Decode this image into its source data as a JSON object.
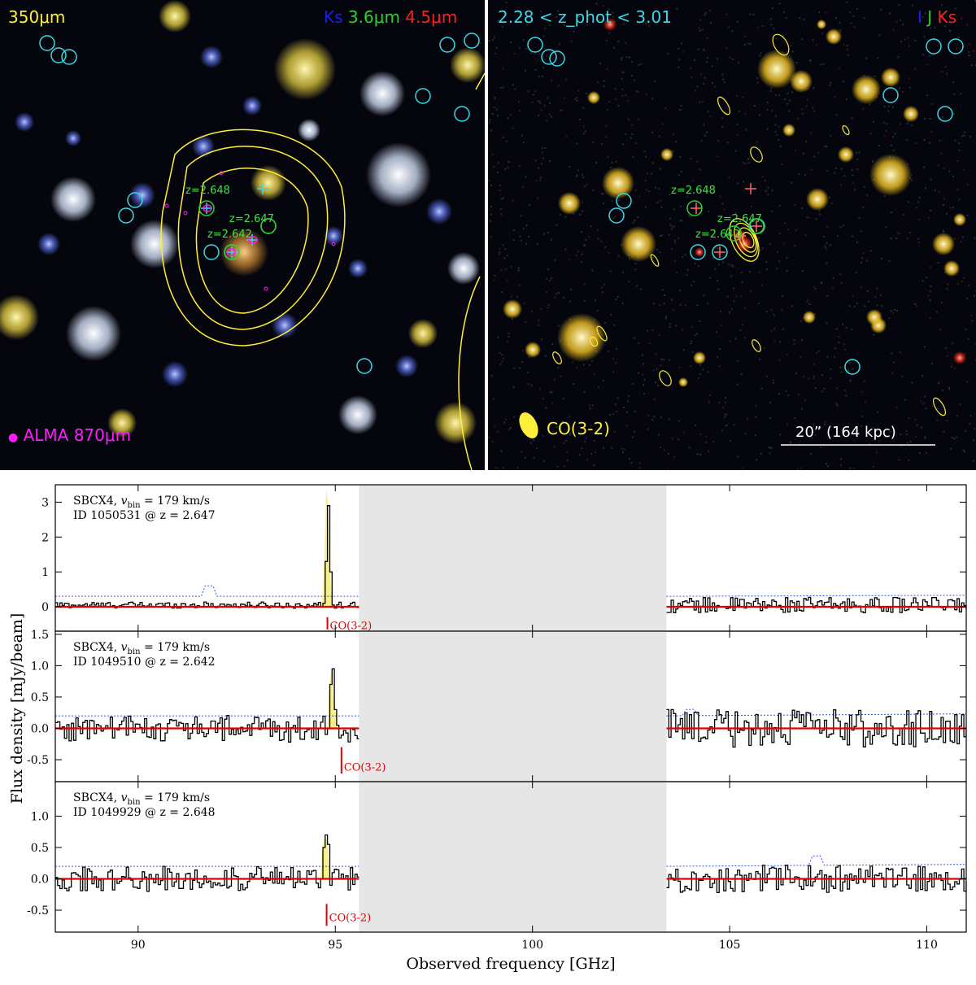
{
  "left_panel": {
    "band_label": "350",
    "micron_suffix": "μm",
    "rgb_blue": "Ks",
    "rgb_green_value": "3.6",
    "rgb_red_value": "4.5",
    "alma_label": "ALMA 870",
    "redshift_labels": [
      "z=2.648",
      "z=2.647",
      "z=2.642"
    ],
    "colors": {
      "band": "#ffef3a",
      "blue": "#1a1aff",
      "green": "#2bd22b",
      "red": "#ff2020",
      "alma": "#ff1aff",
      "contour": "#ffef3a",
      "circle": "#3cd8e6"
    }
  },
  "right_panel": {
    "photz_label": "2.28 < z_phot < 3.01",
    "rgb_i": "I",
    "rgb_j": "J",
    "rgb_ks": "Ks",
    "co_label": "CO(3-2)",
    "scale_label": "20” (164 kpc)",
    "redshift_labels": [
      "z=2.648",
      "z=2.647",
      "z=2.642"
    ],
    "colors": {
      "photz": "#3cd8e6",
      "i": "#1a1aff",
      "j": "#2bd22b",
      "ks": "#ff2020",
      "co": "#ffef3a",
      "scale": "#ffffff"
    }
  },
  "chart_data": {
    "type": "line",
    "xlabel": "Observed frequency [GHz]",
    "ylabel": "Flux density [mJy/beam]",
    "xlim": [
      87.9,
      111.0
    ],
    "xticks": [
      90,
      95,
      100,
      105,
      110
    ],
    "masked_range": [
      95.6,
      103.4
    ],
    "line_label": "CO(3-2)",
    "panels": [
      {
        "instrument": "SBCX4",
        "vbin_label": "v",
        "vbin_subscript": "bin",
        "vbin_value": "= 179 km/s",
        "id_label": "ID 1050531 @ z = 2.647",
        "ylim": [
          -0.7,
          3.5
        ],
        "yticks": [
          0,
          1,
          2,
          3
        ],
        "line_freq": 94.8,
        "line_marker_range": [
          -0.3,
          -0.65
        ],
        "line_label_y": -0.5,
        "line_fill": [
          {
            "freq": 94.62,
            "flux": 0.0
          },
          {
            "freq": 94.67,
            "flux": 0.1
          },
          {
            "freq": 94.72,
            "flux": 1.3
          },
          {
            "freq": 94.77,
            "flux": 3.4
          },
          {
            "freq": 94.82,
            "flux": 2.9
          },
          {
            "freq": 94.87,
            "flux": 1.0
          },
          {
            "freq": 94.92,
            "flux": 0.05
          }
        ],
        "low_band": {
          "start": 87.9,
          "end": 95.6,
          "noise_amp": 0.09
        },
        "high_band": {
          "start": 103.4,
          "end": 111.0,
          "noise_amp": 0.22
        },
        "noise_level": 0.3,
        "noise_bump": {
          "freq": 91.8,
          "height": 0.3
        }
      },
      {
        "instrument": "SBCX4",
        "vbin_label": "v",
        "vbin_subscript": "bin",
        "vbin_value": "= 179 km/s",
        "id_label": "ID 1049510 @ z = 2.642",
        "ylim": [
          -0.85,
          1.55
        ],
        "yticks": [
          -0.5,
          0.0,
          0.5,
          1.0,
          1.5
        ],
        "line_freq": 94.95,
        "line_marker_range": [
          -0.3,
          -0.72
        ],
        "line_label_y": -0.6,
        "line_fill": [
          {
            "freq": 94.8,
            "flux": 0.0
          },
          {
            "freq": 94.85,
            "flux": 0.7
          },
          {
            "freq": 94.9,
            "flux": 0.95
          },
          {
            "freq": 94.95,
            "flux": 0.5
          },
          {
            "freq": 95.0,
            "flux": 0.3
          },
          {
            "freq": 95.05,
            "flux": 0.05
          }
        ],
        "low_band": {
          "start": 87.9,
          "end": 95.6,
          "noise_amp": 0.22
        },
        "high_band": {
          "start": 103.4,
          "end": 111.0,
          "noise_amp": 0.3
        },
        "noise_level": 0.2,
        "noise_bump": {
          "freq": 104.0,
          "height": 0.1
        }
      },
      {
        "instrument": "SBCX4",
        "vbin_label": "v",
        "vbin_subscript": "bin",
        "vbin_value": "= 179 km/s",
        "id_label": "ID 1049929 @ z = 2.648",
        "ylim": [
          -0.85,
          1.55
        ],
        "yticks": [
          -0.5,
          0.0,
          0.5,
          1.0
        ],
        "line_freq": 94.78,
        "line_marker_range": [
          -0.4,
          -0.75
        ],
        "line_label_y": -0.6,
        "line_fill": [
          {
            "freq": 94.62,
            "flux": 0.0
          },
          {
            "freq": 94.68,
            "flux": 0.5
          },
          {
            "freq": 94.74,
            "flux": 0.7
          },
          {
            "freq": 94.8,
            "flux": 0.55
          },
          {
            "freq": 94.86,
            "flux": 0.05
          }
        ],
        "low_band": {
          "start": 87.9,
          "end": 95.6,
          "noise_amp": 0.2
        },
        "high_band": {
          "start": 103.4,
          "end": 111.0,
          "noise_amp": 0.22
        },
        "noise_level": 0.2,
        "noise_bump": {
          "freq": 107.2,
          "height": 0.15
        }
      }
    ],
    "colors": {
      "zero_line": "#e00000",
      "noise": "#3a50e0",
      "fill": "#f7f08a",
      "mask": "#e6e6e6",
      "label": "#e00000"
    }
  }
}
